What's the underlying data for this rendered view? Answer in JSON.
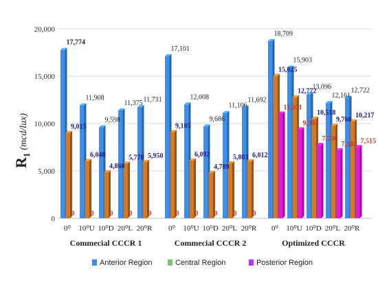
{
  "chart_data": {
    "type": "bar",
    "ylabel_main": "R",
    "ylabel_sub": "1",
    "ylabel_unit": "(mcd/lux)",
    "ylim": [
      0,
      20000
    ],
    "yticks": [
      "0",
      "5,000",
      "10,000",
      "15,000",
      "20,000"
    ],
    "categories": [
      "0⁰",
      "10⁰U",
      "10⁰D",
      "20⁰L",
      "20⁰R"
    ],
    "groups": [
      {
        "name": "Commecial CCCR 1",
        "series": [
          {
            "name": "Anterior Region",
            "values": [
              17774,
              11908,
              9598,
              11375,
              11731
            ],
            "labels": [
              "17,774",
              "11,908",
              "9,598",
              "11,375",
              "11,731"
            ]
          },
          {
            "name": "Central Region",
            "values": [
              9015,
              6040,
              4868,
              5770,
              5950
            ],
            "labels": [
              "9,015",
              "6,040",
              "4,868",
              "5,770",
              "5,950"
            ]
          },
          {
            "name": "Posterior Region",
            "values": [
              0,
              0,
              0,
              0,
              0
            ],
            "labels": [
              "0",
              "0",
              "0",
              "0",
              "0"
            ]
          }
        ]
      },
      {
        "name": "Commecial CCCR 2",
        "series": [
          {
            "name": "Anterior Region",
            "values": [
              17101,
              12008,
              9686,
              11106,
              11692
            ],
            "labels": [
              "17,101",
              "12,008",
              "9,686",
              "11,106",
              "11,692"
            ]
          },
          {
            "name": "Central Region",
            "values": [
              9105,
              6092,
              4789,
              5803,
              6012
            ],
            "labels": [
              "9,105",
              "6,092",
              "4,789",
              "5,803",
              "6,012"
            ]
          },
          {
            "name": "Posterior Region",
            "values": [
              0,
              0,
              0,
              0,
              0
            ],
            "labels": [
              "0",
              "0",
              "0",
              "0",
              "0"
            ]
          }
        ]
      },
      {
        "name": "Optimized CCCR",
        "series": [
          {
            "name": "Anterior Region",
            "values": [
              18709,
              15903,
              13096,
              12161,
              12722
            ],
            "labels": [
              "18,709",
              "15,903",
              "13,096",
              "12,161",
              "12,722"
            ]
          },
          {
            "name": "Central Region",
            "values": [
              15025,
              12772,
              10518,
              9766,
              10217
            ],
            "labels": [
              "15,025",
              "12,772",
              "10,518",
              "9,766",
              "10,217"
            ]
          },
          {
            "name": "Posterior Region",
            "values": [
              11051,
              9394,
              7736,
              7183,
              7515
            ],
            "labels": [
              "11,051",
              "9,394",
              "7,736",
              "7,183",
              "7,515"
            ]
          }
        ]
      }
    ],
    "legend": [
      {
        "name": "Anterior Region",
        "color": "#3b8fe0"
      },
      {
        "name": "Central Region",
        "color": "#7bc96f"
      },
      {
        "name": "Posterior Region",
        "color": "#b23ae8"
      }
    ],
    "legend_position": "bottom",
    "colors": {
      "anterior": "#3f8fe6",
      "central": "#d07a2a",
      "posterior": "#e01bd8",
      "gridline": "#d9d9d9",
      "label_dark": "#222222",
      "label_blue": "#1a1a8c",
      "label_red": "#c0392b"
    }
  }
}
